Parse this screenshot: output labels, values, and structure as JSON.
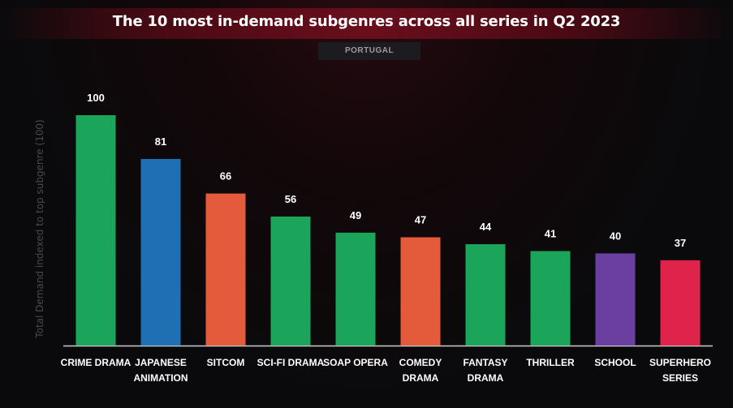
{
  "chart_data": {
    "type": "bar",
    "title": "The 10 most in-demand subgenres across all series in Q2 2023",
    "subtitle": "PORTUGAL",
    "ylabel": "Total Demand indexed to top subgenre (100)",
    "xlabel": "",
    "ylim": [
      0,
      100
    ],
    "grid": false,
    "categories": [
      "CRIME DRAMA",
      "JAPANESE ANIMATION",
      "SITCOM",
      "SCI-FI DRAMA",
      "SOAP OPERA",
      "COMEDY DRAMA",
      "FANTASY DRAMA",
      "THRILLER",
      "SCHOOL",
      "SUPERHERO SERIES"
    ],
    "category_lines": [
      [
        "CRIME DRAMA"
      ],
      [
        "JAPANESE",
        "ANIMATION"
      ],
      [
        "SITCOM"
      ],
      [
        "SCI-FI DRAMA"
      ],
      [
        "SOAP OPERA"
      ],
      [
        "COMEDY",
        "DRAMA"
      ],
      [
        "FANTASY",
        "DRAMA"
      ],
      [
        "THRILLER"
      ],
      [
        "SCHOOL"
      ],
      [
        "SUPERHERO",
        "SERIES"
      ]
    ],
    "values": [
      100,
      81,
      66,
      56,
      49,
      47,
      44,
      41,
      40,
      37
    ],
    "colors": [
      "#1aa55a",
      "#1f6fb5",
      "#e35b3a",
      "#1aa55a",
      "#1aa55a",
      "#e35b3a",
      "#1aa55a",
      "#1aa55a",
      "#6a3fa0",
      "#e0234a"
    ]
  },
  "theme": {
    "background": "#0a0a0c",
    "axis_color": "#cccccc",
    "title_band": "#6a0e1c"
  }
}
